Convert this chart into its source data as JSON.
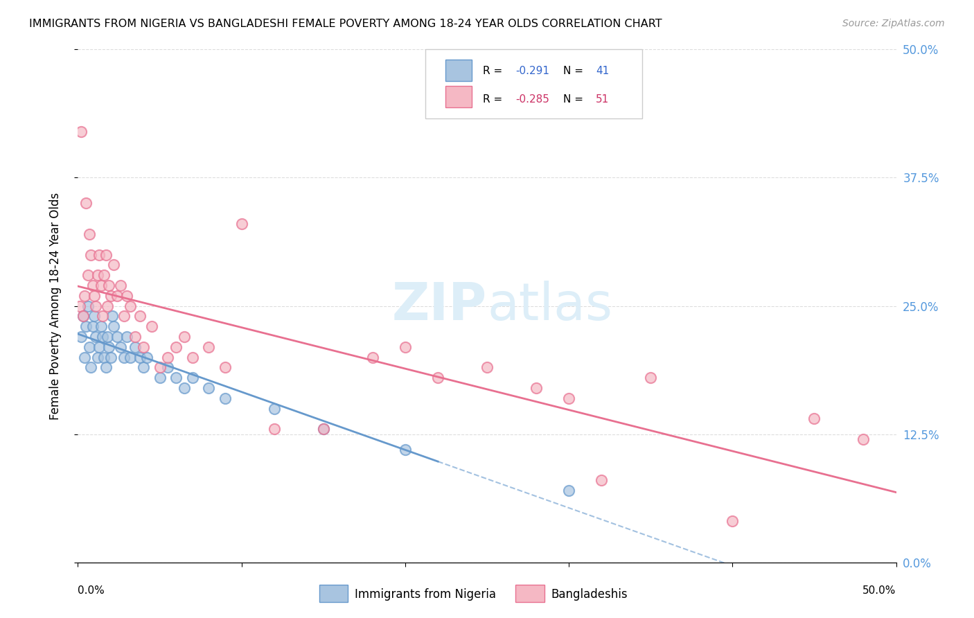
{
  "title": "IMMIGRANTS FROM NIGERIA VS BANGLADESHI FEMALE POVERTY AMONG 18-24 YEAR OLDS CORRELATION CHART",
  "source": "Source: ZipAtlas.com",
  "ylabel": "Female Poverty Among 18-24 Year Olds",
  "legend_label1_r": "-0.291",
  "legend_label1_n": "41",
  "legend_label2_r": "-0.285",
  "legend_label2_n": "51",
  "xmin": 0.0,
  "xmax": 0.5,
  "ymin": 0.0,
  "ymax": 0.5,
  "yticks": [
    0.0,
    0.125,
    0.25,
    0.375,
    0.5
  ],
  "ytick_labels_right": [
    "0.0%",
    "12.5%",
    "25.0%",
    "37.5%",
    "50.0%"
  ],
  "color_blue": "#a8c4e0",
  "color_pink": "#f5b8c4",
  "color_blue_line": "#6699cc",
  "color_pink_line": "#e87090",
  "watermark_color": "#ddeef8",
  "nigeria_x": [
    0.002,
    0.003,
    0.004,
    0.005,
    0.006,
    0.007,
    0.008,
    0.009,
    0.01,
    0.011,
    0.012,
    0.013,
    0.014,
    0.015,
    0.016,
    0.017,
    0.018,
    0.019,
    0.02,
    0.021,
    0.022,
    0.024,
    0.026,
    0.028,
    0.03,
    0.032,
    0.035,
    0.038,
    0.04,
    0.042,
    0.05,
    0.055,
    0.06,
    0.065,
    0.07,
    0.08,
    0.09,
    0.12,
    0.15,
    0.2,
    0.3
  ],
  "nigeria_y": [
    0.22,
    0.24,
    0.2,
    0.23,
    0.25,
    0.21,
    0.19,
    0.23,
    0.24,
    0.22,
    0.2,
    0.21,
    0.23,
    0.22,
    0.2,
    0.19,
    0.22,
    0.21,
    0.2,
    0.24,
    0.23,
    0.22,
    0.21,
    0.2,
    0.22,
    0.2,
    0.21,
    0.2,
    0.19,
    0.2,
    0.18,
    0.19,
    0.18,
    0.17,
    0.18,
    0.17,
    0.16,
    0.15,
    0.13,
    0.11,
    0.07
  ],
  "bangladesh_x": [
    0.001,
    0.002,
    0.003,
    0.004,
    0.005,
    0.006,
    0.007,
    0.008,
    0.009,
    0.01,
    0.011,
    0.012,
    0.013,
    0.014,
    0.015,
    0.016,
    0.017,
    0.018,
    0.019,
    0.02,
    0.022,
    0.024,
    0.026,
    0.028,
    0.03,
    0.032,
    0.035,
    0.038,
    0.04,
    0.045,
    0.05,
    0.055,
    0.06,
    0.065,
    0.07,
    0.08,
    0.09,
    0.1,
    0.12,
    0.15,
    0.18,
    0.2,
    0.22,
    0.25,
    0.28,
    0.3,
    0.32,
    0.35,
    0.4,
    0.45,
    0.48
  ],
  "bangladesh_y": [
    0.25,
    0.42,
    0.24,
    0.26,
    0.35,
    0.28,
    0.32,
    0.3,
    0.27,
    0.26,
    0.25,
    0.28,
    0.3,
    0.27,
    0.24,
    0.28,
    0.3,
    0.25,
    0.27,
    0.26,
    0.29,
    0.26,
    0.27,
    0.24,
    0.26,
    0.25,
    0.22,
    0.24,
    0.21,
    0.23,
    0.19,
    0.2,
    0.21,
    0.22,
    0.2,
    0.21,
    0.19,
    0.33,
    0.13,
    0.13,
    0.2,
    0.21,
    0.18,
    0.19,
    0.17,
    0.16,
    0.08,
    0.18,
    0.04,
    0.14,
    0.12
  ]
}
